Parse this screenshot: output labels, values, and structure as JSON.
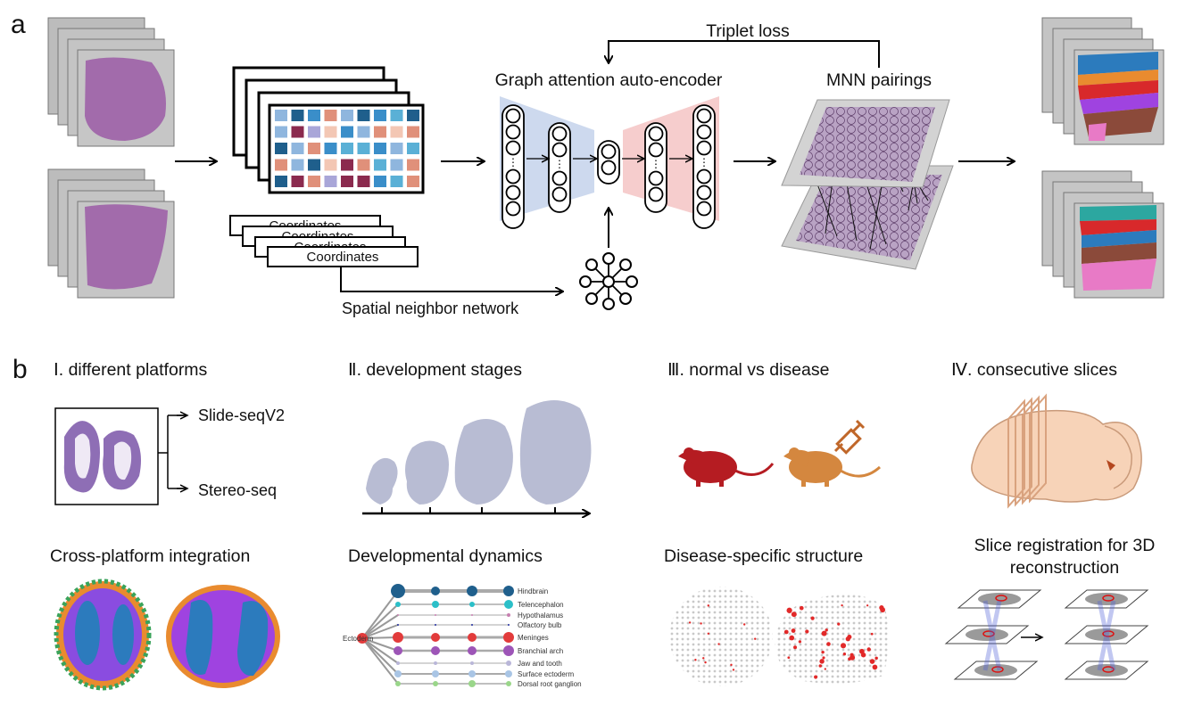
{
  "panel_a": {
    "letter": "a",
    "triplet_loss": "Triplet loss",
    "encoder_title": "Graph attention auto-encoder",
    "mnn_title": "MNN pairings",
    "coords_label": "Coordinates",
    "spatial_network": "Spatial neighbor network"
  },
  "panel_b": {
    "letter": "b",
    "sections": [
      {
        "title": "Ⅰ. different platforms",
        "subtitle": "Cross-platform integration",
        "platforms": [
          "Slide-seqV2",
          "Stereo-seq"
        ]
      },
      {
        "title": "Ⅱ. development stages",
        "subtitle": "Developmental dynamics",
        "legend": [
          "Hindbrain",
          "Telencephalon",
          "Hypothalamus",
          "Olfactory bulb",
          "Meninges",
          "Branchial arch",
          "Jaw and tooth",
          "Surface ectoderm",
          "Dorsal root ganglion"
        ],
        "root": "Ectoderm"
      },
      {
        "title": "Ⅲ. normal vs disease",
        "subtitle": "Disease-specific structure"
      },
      {
        "title": "Ⅳ. consecutive slices",
        "subtitle_line1": "Slice registration for 3D",
        "subtitle_line2": "reconstruction"
      }
    ]
  },
  "colors": {
    "encoder_blue": "#cdd9ee",
    "decoder_red": "#f6cdcd",
    "tissue_purple": "#9b5aa6",
    "embryo": "#b8bcd3",
    "mouse_normal": "#b51c22",
    "mouse_disease": "#d4873f",
    "brain": "#f7d3b8",
    "mnn_plane": "#b9a3c4"
  }
}
